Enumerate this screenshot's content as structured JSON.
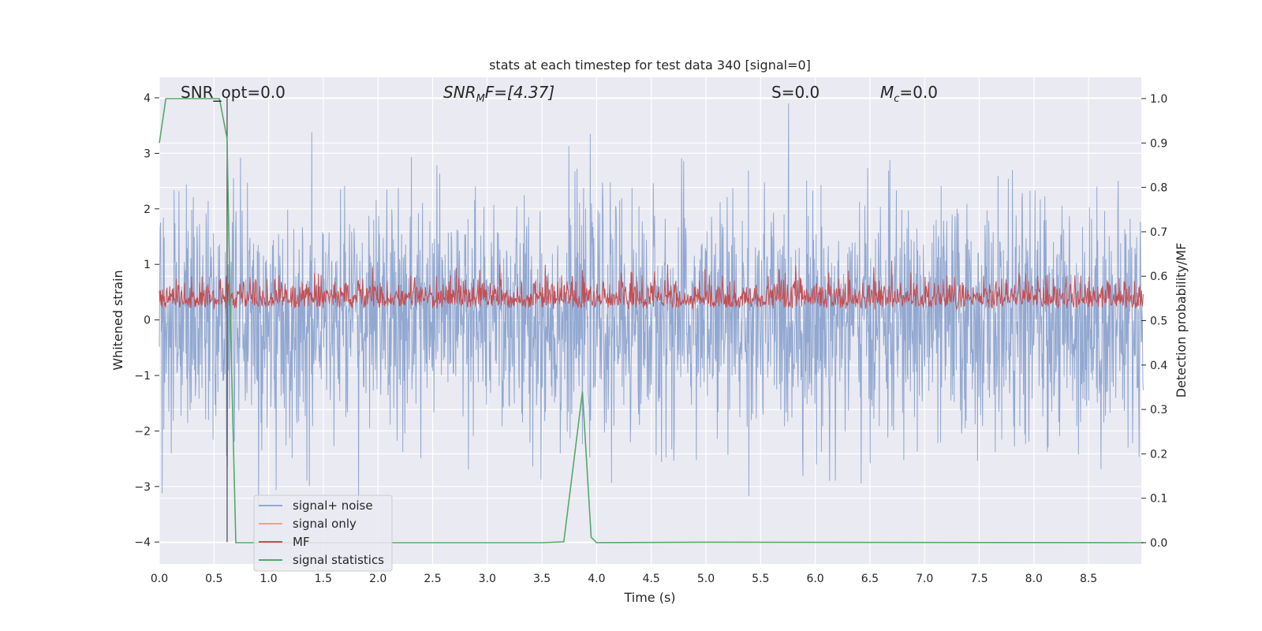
{
  "chart_data": {
    "type": "line",
    "title": "stats at each timestep for test data 340 [signal=0]",
    "xlabel": "Time (s)",
    "ylabel": "Whitened strain",
    "y2label": "Detection probability/MF",
    "xlim": [
      0.0,
      9.0
    ],
    "ylim": [
      -4.4,
      4.4
    ],
    "y2lim": [
      -0.05,
      1.05
    ],
    "x_ticks": [
      "0.0",
      "0.5",
      "1.0",
      "1.5",
      "2.0",
      "2.5",
      "3.0",
      "3.5",
      "4.0",
      "4.5",
      "5.0",
      "5.5",
      "6.0",
      "6.5",
      "7.0",
      "7.5",
      "8.0",
      "8.5"
    ],
    "y_ticks": [
      "4",
      "3",
      "2",
      "1",
      "0",
      "−1",
      "−2",
      "−3",
      "−4"
    ],
    "y2_ticks": [
      "1.0",
      "0.9",
      "0.8",
      "0.7",
      "0.6",
      "0.5",
      "0.4",
      "0.3",
      "0.2",
      "0.1",
      "0.0"
    ],
    "grid": true,
    "legend_position": "lower-left",
    "annotations": {
      "snr_opt": "SNR_opt=0.0",
      "snr_mf_main": "SNR",
      "snr_mf_sub": "M",
      "snr_mf_rest": "F=[4.37]",
      "s_label": "S=0.0",
      "mc_main": "M",
      "mc_sub": "c",
      "mc_rest": "=0.0"
    },
    "marker_line_x": 0.62,
    "series": [
      {
        "name": "signal+ noise",
        "color": "#92a8d1",
        "description_values": "noise-like, amplitude approx ±1.6 dense, peaks to ±4"
      },
      {
        "name": "signal only",
        "color": "#e8a58a",
        "values": []
      },
      {
        "name": "MF",
        "color": "#c44e52",
        "axis": "right",
        "range_approx": [
          0.5,
          0.63
        ]
      },
      {
        "name": "signal statistics",
        "color": "#55a868",
        "axis": "right",
        "x": [
          0.0,
          0.06,
          0.1,
          0.5,
          0.55,
          0.62,
          0.65,
          0.7,
          3.5,
          3.7,
          3.8,
          3.87,
          3.95,
          4.0,
          5.0,
          9.0
        ],
        "values": [
          0.9,
          1.0,
          1.0,
          1.0,
          1.0,
          0.91,
          0.5,
          0.0,
          0.0,
          0.002,
          0.2,
          0.34,
          0.012,
          0.0,
          0.001,
          0.0
        ]
      }
    ]
  }
}
